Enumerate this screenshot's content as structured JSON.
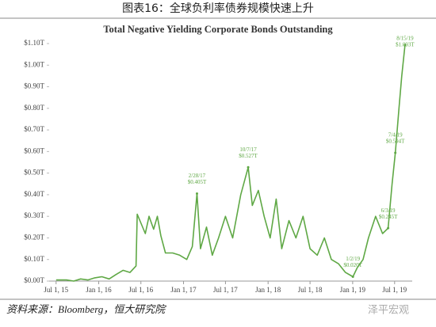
{
  "caption": "图表16：全球负利率债券规模快速上升",
  "source": "资料来源：Bloomberg，恒大研究院",
  "watermark": "泽平宏观",
  "chart_data": {
    "type": "line",
    "title": "Total Negative Yielding Corporate Bonds Outstanding",
    "x": [
      "2015-07-01",
      "2015-08-15",
      "2015-09-15",
      "2015-10-15",
      "2015-11-15",
      "2015-12-15",
      "2016-01-15",
      "2016-02-15",
      "2016-03-15",
      "2016-04-15",
      "2016-05-15",
      "2016-06-10",
      "2016-06-15",
      "2016-07-20",
      "2016-08-05",
      "2016-08-25",
      "2016-09-10",
      "2016-09-25",
      "2016-10-15",
      "2016-11-15",
      "2016-12-15",
      "2017-01-15",
      "2017-02-08",
      "2017-02-28",
      "2017-03-15",
      "2017-04-10",
      "2017-05-05",
      "2017-06-01",
      "2017-07-01",
      "2017-08-01",
      "2017-09-05",
      "2017-10-07",
      "2017-10-25",
      "2017-11-20",
      "2017-12-15",
      "2018-01-10",
      "2018-02-05",
      "2018-03-01",
      "2018-04-01",
      "2018-05-01",
      "2018-06-01",
      "2018-07-01",
      "2018-08-01",
      "2018-09-01",
      "2018-10-01",
      "2018-11-01",
      "2018-12-01",
      "2019-01-02",
      "2019-01-20",
      "2019-02-15",
      "2019-03-10",
      "2019-04-10",
      "2019-05-10",
      "2019-06-03",
      "2019-06-20",
      "2019-07-04",
      "2019-07-20",
      "2019-08-01",
      "2019-08-15"
    ],
    "series": [
      {
        "name": "Negative Yielding Corporate Bonds",
        "color": "#5fa845",
        "values": [
          0.005,
          0.005,
          0.0,
          0.01,
          0.005,
          0.015,
          0.02,
          0.01,
          0.03,
          0.05,
          0.04,
          0.07,
          0.31,
          0.22,
          0.3,
          0.24,
          0.3,
          0.21,
          0.13,
          0.13,
          0.12,
          0.1,
          0.16,
          0.405,
          0.15,
          0.25,
          0.12,
          0.2,
          0.3,
          0.2,
          0.4,
          0.527,
          0.35,
          0.42,
          0.3,
          0.2,
          0.38,
          0.15,
          0.28,
          0.2,
          0.3,
          0.15,
          0.12,
          0.2,
          0.1,
          0.08,
          0.04,
          0.02,
          0.06,
          0.1,
          0.2,
          0.3,
          0.22,
          0.245,
          0.45,
          0.594,
          0.8,
          0.95,
          1.093
        ]
      }
    ],
    "ylim": [
      0,
      1.1
    ],
    "yticks": [
      {
        "value": 0,
        "label": "$0.00T"
      },
      {
        "value": 0.1,
        "label": "$0.10T"
      },
      {
        "value": 0.2,
        "label": "$0.20T"
      },
      {
        "value": 0.3,
        "label": "$0.30T"
      },
      {
        "value": 0.4,
        "label": "$0.40T"
      },
      {
        "value": 0.5,
        "label": "$0.50T"
      },
      {
        "value": 0.6,
        "label": "$0.60T"
      },
      {
        "value": 0.7,
        "label": "$0.70T"
      },
      {
        "value": 0.8,
        "label": "$0.80T"
      },
      {
        "value": 0.9,
        "label": "$0.90T"
      },
      {
        "value": 1.0,
        "label": "$1.00T"
      },
      {
        "value": 1.1,
        "label": "$1.10T"
      }
    ],
    "xlim": [
      "2015-06-01",
      "2019-09-15"
    ],
    "xticks": [
      {
        "value": "2015-07-01",
        "label": "Jul 1, 15"
      },
      {
        "value": "2016-01-01",
        "label": "Jan 1, 16"
      },
      {
        "value": "2016-07-01",
        "label": "Jul 1, 16"
      },
      {
        "value": "2017-01-01",
        "label": "Jan 1, 17"
      },
      {
        "value": "2017-07-01",
        "label": "Jul 1, 17"
      },
      {
        "value": "2018-01-01",
        "label": "Jan 1, 18"
      },
      {
        "value": "2018-07-01",
        "label": "Jul 1, 18"
      },
      {
        "value": "2019-01-01",
        "label": "Jan 1, 19"
      },
      {
        "value": "2019-07-01",
        "label": "Jul 1, 19"
      }
    ],
    "annotations": [
      {
        "x": "2017-02-28",
        "value": 0.405,
        "date_label": "2/28/17",
        "value_label": "$0.405T"
      },
      {
        "x": "2017-10-07",
        "value": 0.527,
        "date_label": "10/7/17",
        "value_label": "$0.527T"
      },
      {
        "x": "2019-01-02",
        "value": 0.02,
        "date_label": "1/2/19",
        "value_label": "$0.020T"
      },
      {
        "x": "2019-06-03",
        "value": 0.245,
        "date_label": "6/3/19",
        "value_label": "$0.245T"
      },
      {
        "x": "2019-07-04",
        "value": 0.594,
        "date_label": "7/4/19",
        "value_label": "$0.594T"
      },
      {
        "x": "2019-08-15",
        "value": 1.093,
        "date_label": "8/15/19",
        "value_label": "$1.093T"
      }
    ]
  }
}
